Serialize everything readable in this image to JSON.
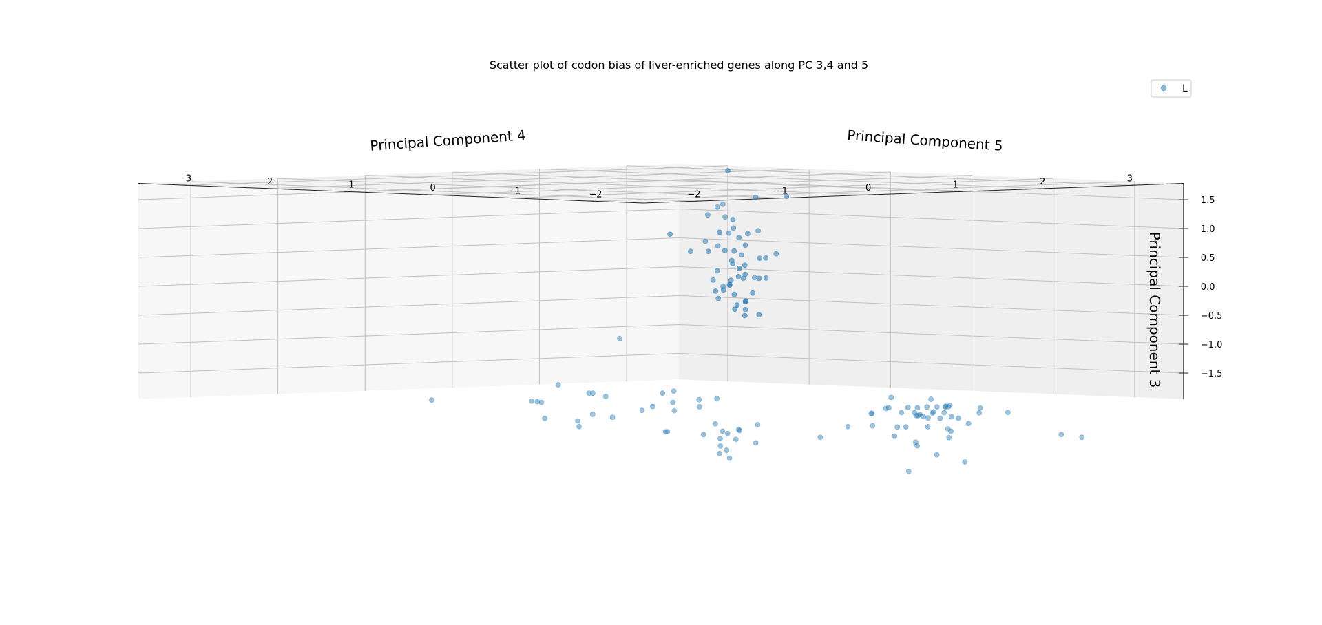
{
  "chart_data": {
    "type": "scatter",
    "projection": "3d",
    "title": "Scatter plot of codon bias of liver-enriched genes along PC 3,4 and 5",
    "axes": {
      "x": {
        "label": "Principal Component 4",
        "ticks": [
          "−2",
          "−1",
          "0",
          "1",
          "2",
          "3"
        ]
      },
      "y": {
        "label": "Principal Component 5",
        "ticks": [
          "−2",
          "−1",
          "0",
          "1",
          "2",
          "3"
        ]
      },
      "z": {
        "label": "Principal Component 3",
        "ticks": [
          "1.5",
          "1.0",
          "0.5",
          "0.0",
          "−0.5",
          "−1.0",
          "−1.5"
        ]
      }
    },
    "legend": {
      "position": "top-right",
      "entries": [
        "L"
      ]
    },
    "grid": true,
    "series": [
      {
        "name": "L",
        "color": "#1f77b4",
        "points": [
          [
            1.78,
            1.05,
            1.9
          ],
          [
            1.4,
            0.3,
            1.5
          ],
          [
            1.22,
            0.51,
            1.38
          ],
          [
            1.27,
            0.75,
            1.18
          ],
          [
            1.1,
            0.45,
            1.34
          ],
          [
            1.05,
            0.3,
            1.18
          ],
          [
            1.54,
            0.42,
            0.91
          ],
          [
            1.92,
            0.48,
            1.48
          ],
          [
            1.35,
            0.52,
            0.96
          ],
          [
            1.56,
            0.57,
            0.85
          ],
          [
            1.27,
            0.49,
            0.88
          ],
          [
            1.68,
            0.88,
            1.07
          ],
          [
            1.35,
            0.71,
            0.64
          ],
          [
            1.6,
            0.72,
            0.77
          ],
          [
            1.72,
            0.77,
            0.63
          ],
          [
            1.78,
            1.15,
            0.83
          ],
          [
            1.75,
            0.94,
            0.52
          ],
          [
            1.25,
            0.94,
            0.54
          ],
          [
            1.28,
            0.79,
            0.72
          ],
          [
            1.36,
            1.31,
            0.81
          ],
          [
            1.52,
            1.01,
            0.52
          ],
          [
            1.52,
            0.9,
            0.19
          ],
          [
            1.62,
            0.71,
            0.47
          ],
          [
            1.84,
            1.15,
            0.51
          ],
          [
            1.84,
            0.52,
            0.49
          ],
          [
            1.76,
            0.82,
            0.28
          ],
          [
            1.68,
            0.55,
            0.42
          ],
          [
            1.64,
            0.84,
            0.31
          ],
          [
            1.74,
            0.54,
            0.42
          ],
          [
            1.94,
            1.08,
            0.2
          ],
          [
            1.7,
            0.75,
            0.13
          ],
          [
            1.86,
            0.75,
            0.05
          ],
          [
            1.5,
            0.93,
            0.03
          ],
          [
            1.59,
            0.82,
            -0.05
          ],
          [
            1.78,
            0.58,
            0.07
          ],
          [
            1.52,
            0.92,
            -0.16
          ],
          [
            1.65,
            0.89,
            -0.06
          ],
          [
            1.51,
            0.57,
            0.08
          ],
          [
            1.39,
            0.69,
            -0.06
          ],
          [
            1.49,
            0.7,
            0.04
          ],
          [
            1.66,
            0.79,
            0.09
          ],
          [
            1.33,
            0.24,
            0.12
          ],
          [
            1.55,
            0.92,
            -0.29
          ],
          [
            1.73,
            1.05,
            -0.16
          ],
          [
            1.61,
            0.82,
            0.37
          ],
          [
            1.79,
            0.84,
            -0.34
          ],
          [
            1.92,
            1.12,
            -0.25
          ],
          [
            1.87,
            0.84,
            -0.21
          ],
          [
            1.88,
            1.07,
            -0.5
          ],
          [
            1.98,
            1.15,
            -0.44
          ],
          [
            1.87,
            0.93,
            -0.5
          ],
          [
            1.97,
            0.87,
            -0.59
          ],
          [
            1.92,
            0.99,
            -0.61
          ],
          [
            2.0,
            1.07,
            -0.38
          ],
          [
            -0.62,
            0.82,
            -1.95
          ],
          [
            -0.02,
            0.45,
            -0.87
          ],
          [
            -0.67,
            0.51,
            -1.64
          ],
          [
            -0.32,
            0.46,
            -1.8
          ],
          [
            -1.71,
            0.95,
            -1.87
          ],
          [
            -0.74,
            0.76,
            -1.93
          ],
          [
            -0.42,
            0.4,
            -1.79
          ],
          [
            -0.89,
            0.48,
            -1.93
          ],
          [
            0.04,
            -0.15,
            -1.75
          ],
          [
            0.09,
            0.04,
            -1.8
          ],
          [
            -0.04,
            0.6,
            -1.88
          ],
          [
            0.0,
            0.56,
            -2.24
          ],
          [
            0.16,
            -0.01,
            -1.96
          ],
          [
            0.27,
            -0.22,
            -2.03
          ],
          [
            -0.74,
            0.6,
            -2.22
          ],
          [
            0.46,
            -0.23,
            -1.9
          ],
          [
            -0.19,
            0.6,
            -2.18
          ],
          [
            0.04,
            0.11,
            -2.03
          ],
          [
            0.46,
            -0.01,
            -1.93
          ],
          [
            -0.1,
            0.09,
            -2.09
          ],
          [
            0.41,
            0.24,
            -2.13
          ],
          [
            -0.23,
            0.74,
            -2.3
          ],
          [
            -0.28,
            0.67,
            -2.39
          ],
          [
            0.34,
            0.25,
            -2.49
          ],
          [
            0.61,
            -0.57,
            -2.34
          ],
          [
            0.75,
            0.1,
            -2.37
          ],
          [
            0.56,
            -0.39,
            -2.43
          ],
          [
            0.3,
            0.23,
            -2.49
          ],
          [
            0.76,
            -0.19,
            -2.47
          ],
          [
            0.55,
            0.03,
            -2.54
          ],
          [
            0.73,
            -0.01,
            -2.49
          ],
          [
            0.76,
            -0.04,
            -2.53
          ],
          [
            0.65,
            -0.26,
            -2.61
          ],
          [
            0.75,
            0.04,
            -2.62
          ],
          [
            1.44,
            -0.45,
            -2.61
          ],
          [
            0.83,
            -0.31,
            -2.68
          ],
          [
            0.49,
            -0.24,
            -2.72
          ],
          [
            0.59,
            -0.21,
            -2.8
          ],
          [
            0.5,
            -0.22,
            -2.85
          ],
          [
            0.53,
            -0.31,
            -2.93
          ],
          [
            1.21,
            -1.34,
            -2.35
          ],
          [
            1.34,
            -1.61,
            -2.36
          ],
          [
            1.03,
            -1.23,
            -2.36
          ],
          [
            1.26,
            -1.59,
            -2.36
          ],
          [
            1.51,
            -1.7,
            -2.21
          ],
          [
            1.28,
            -1.62,
            -2.11
          ],
          [
            1.38,
            -1.74,
            -2.14
          ],
          [
            1.46,
            -1.63,
            -2.17
          ],
          [
            1.54,
            -1.61,
            -2.19
          ],
          [
            1.57,
            -1.69,
            -2.13
          ],
          [
            1.4,
            -1.57,
            -2.03
          ],
          [
            1.65,
            -1.84,
            -2.19
          ],
          [
            1.83,
            -1.73,
            -2.23
          ],
          [
            1.78,
            -2.04,
            -2.12
          ],
          [
            1.62,
            -1.73,
            -2.22
          ],
          [
            1.6,
            -1.8,
            -2.12
          ],
          [
            1.72,
            -1.69,
            -2.02
          ],
          [
            1.66,
            -1.65,
            -2.03
          ],
          [
            1.59,
            -1.6,
            -2.03
          ],
          [
            1.2,
            -1.34,
            -2.13
          ],
          [
            1.73,
            -1.5,
            -1.91
          ],
          [
            1.93,
            -1.89,
            -2.05
          ],
          [
            1.33,
            -1.41,
            -2.04
          ],
          [
            1.27,
            -1.26,
            -2.15
          ],
          [
            1.28,
            -1.43,
            -2.05
          ],
          [
            1.59,
            -1.68,
            -2.11
          ],
          [
            1.33,
            -1.44,
            -1.86
          ],
          [
            1.71,
            -1.7,
            -2.03
          ],
          [
            1.61,
            -1.45,
            -2.19
          ],
          [
            2.1,
            -2.05,
            -2.13
          ],
          [
            1.65,
            -1.8,
            -2.02
          ],
          [
            1.43,
            -1.62,
            -2.12
          ],
          [
            1.5,
            -1.58,
            -2.04
          ],
          [
            1.78,
            -1.68,
            -2.01
          ],
          [
            1.76,
            -1.43,
            -2.39
          ],
          [
            2.04,
            -1.63,
            -2.34
          ],
          [
            1.99,
            -1.43,
            -2.44
          ],
          [
            1.82,
            -1.65,
            -2.46
          ],
          [
            1.9,
            -1.54,
            -2.58
          ],
          [
            1.19,
            -1.89,
            -2.6
          ],
          [
            1.88,
            -1.17,
            -2.74
          ],
          [
            2.04,
            -0.72,
            -2.61
          ],
          [
            2.6,
            -2.17,
            -2.53
          ],
          [
            2.64,
            -2.38,
            -2.57
          ],
          [
            1.76,
            -1.54,
            -2.87
          ],
          [
            2.26,
            -1.35,
            -3.03
          ],
          [
            1.97,
            -0.97,
            -3.2
          ]
        ]
      }
    ]
  }
}
